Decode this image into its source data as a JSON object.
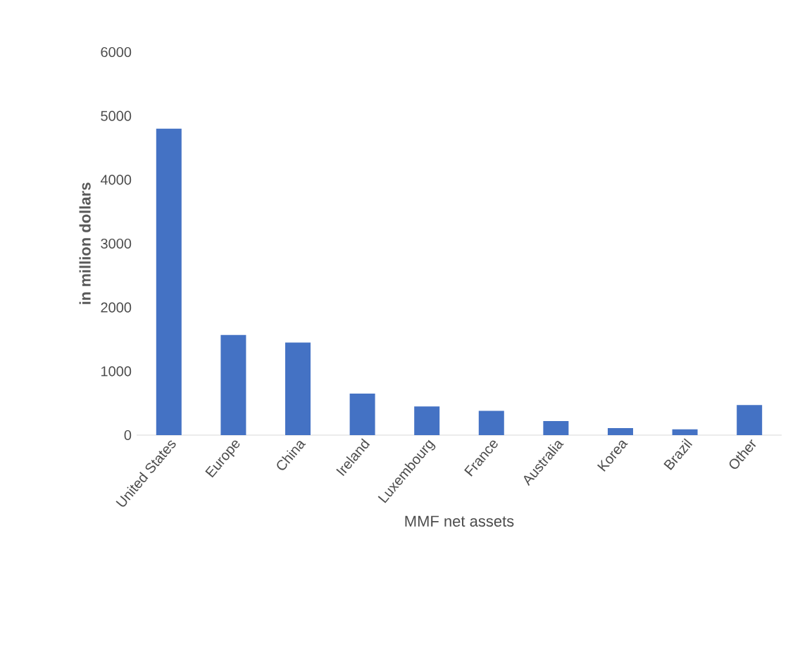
{
  "chart_data": {
    "type": "bar",
    "categories": [
      "United States",
      "Europe",
      "China",
      "Ireland",
      "Luxembourg",
      "France",
      "Australia",
      "Korea",
      "Brazil",
      "Other"
    ],
    "values": [
      4800,
      1570,
      1450,
      650,
      450,
      380,
      220,
      110,
      90,
      470
    ],
    "color": "#4472c4",
    "ylim": [
      0,
      6000
    ],
    "yticks": [
      0,
      1000,
      2000,
      3000,
      4000,
      5000,
      6000
    ],
    "ylabel": "in million dollars",
    "xlabel": "MMF net assets"
  }
}
